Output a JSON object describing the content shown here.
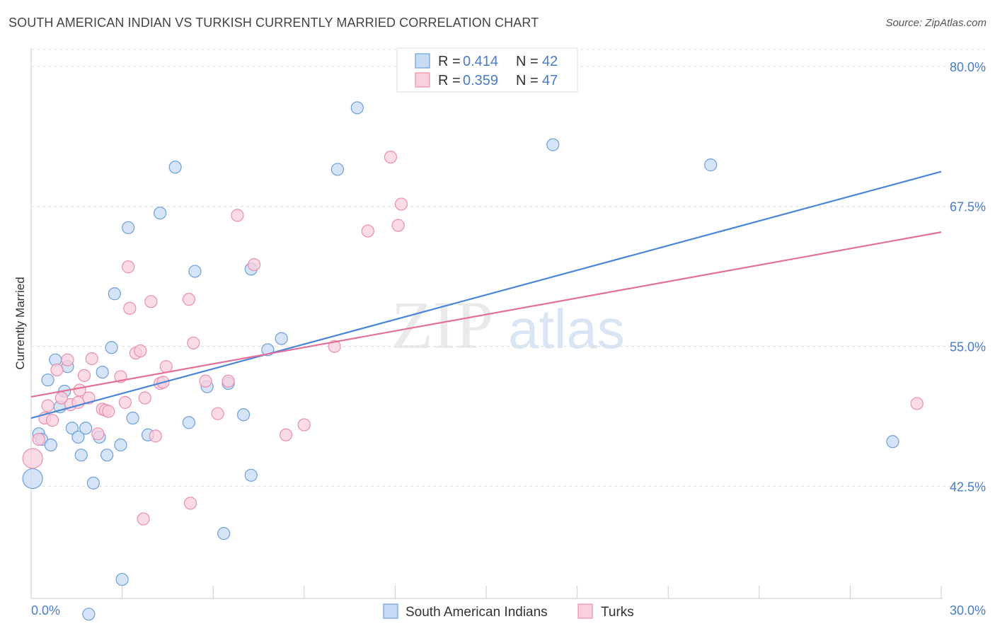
{
  "title": "SOUTH AMERICAN INDIAN VS TURKISH CURRENTLY MARRIED CORRELATION CHART",
  "source": "Source: ZipAtlas.com",
  "watermark": {
    "zip": "ZIP",
    "atlas": "atlas"
  },
  "legend": {
    "r_label": "R =",
    "n_label": "N =",
    "rows": [
      {
        "r": "0.414",
        "n": "42",
        "color": "#6fa0de"
      },
      {
        "r": "0.359",
        "n": "47",
        "color": "#ef8fae"
      }
    ]
  },
  "colors": {
    "blue": "#4a86d8",
    "blue_fill": "#c8dbf4",
    "pink": "#e46f98",
    "pink_fill": "#f9cfdc",
    "accent": "#4a7cc7"
  },
  "chart_data": {
    "type": "scatter",
    "title": "SOUTH AMERICAN INDIAN VS TURKISH CURRENTLY MARRIED CORRELATION CHART",
    "xlabel": "",
    "ylabel": "Currently Married",
    "xlim": [
      0,
      30
    ],
    "ylim": [
      32.5,
      81.5
    ],
    "x_tick_labels": [
      "0.0%",
      "30.0%"
    ],
    "y_ticks": [
      80.0,
      67.5,
      55.0,
      42.5
    ],
    "y_tick_labels": [
      "80.0%",
      "67.5%",
      "55.0%",
      "42.5%"
    ],
    "grid": true,
    "series": [
      {
        "name": "South American Indians",
        "r": 0.414,
        "n": 42,
        "trend": {
          "x": [
            0,
            30
          ],
          "y": [
            48.6,
            70.6
          ]
        },
        "points": [
          {
            "x": 0.05,
            "y": 43.2,
            "big": true
          },
          {
            "x": 0.25,
            "y": 47.2
          },
          {
            "x": 0.35,
            "y": 46.7
          },
          {
            "x": 0.55,
            "y": 52.0
          },
          {
            "x": 0.65,
            "y": 46.2
          },
          {
            "x": 0.8,
            "y": 53.8
          },
          {
            "x": 0.95,
            "y": 49.6
          },
          {
            "x": 1.1,
            "y": 51.0
          },
          {
            "x": 1.2,
            "y": 53.2
          },
          {
            "x": 1.35,
            "y": 47.7
          },
          {
            "x": 1.55,
            "y": 46.9
          },
          {
            "x": 1.65,
            "y": 45.3
          },
          {
            "x": 1.8,
            "y": 47.7
          },
          {
            "x": 1.9,
            "y": 31.1
          },
          {
            "x": 2.05,
            "y": 42.8
          },
          {
            "x": 2.25,
            "y": 46.9
          },
          {
            "x": 2.35,
            "y": 52.7
          },
          {
            "x": 2.5,
            "y": 45.3
          },
          {
            "x": 2.65,
            "y": 54.9
          },
          {
            "x": 2.75,
            "y": 59.7
          },
          {
            "x": 2.95,
            "y": 46.2
          },
          {
            "x": 3.0,
            "y": 34.2
          },
          {
            "x": 3.2,
            "y": 65.6
          },
          {
            "x": 3.35,
            "y": 48.6
          },
          {
            "x": 3.85,
            "y": 47.1
          },
          {
            "x": 4.25,
            "y": 66.9
          },
          {
            "x": 4.75,
            "y": 71.0
          },
          {
            "x": 5.2,
            "y": 48.2
          },
          {
            "x": 5.4,
            "y": 61.7
          },
          {
            "x": 5.8,
            "y": 51.4
          },
          {
            "x": 6.35,
            "y": 38.3
          },
          {
            "x": 6.5,
            "y": 51.7
          },
          {
            "x": 7.0,
            "y": 48.9
          },
          {
            "x": 7.25,
            "y": 43.5
          },
          {
            "x": 7.25,
            "y": 61.9
          },
          {
            "x": 7.8,
            "y": 54.7
          },
          {
            "x": 8.25,
            "y": 55.7
          },
          {
            "x": 10.1,
            "y": 70.8
          },
          {
            "x": 10.75,
            "y": 76.3
          },
          {
            "x": 17.2,
            "y": 73.0
          },
          {
            "x": 22.4,
            "y": 71.2
          },
          {
            "x": 28.4,
            "y": 46.5
          }
        ]
      },
      {
        "name": "Turks",
        "r": 0.359,
        "n": 47,
        "trend": {
          "x": [
            0,
            30
          ],
          "y": [
            50.5,
            65.2
          ]
        },
        "points": [
          {
            "x": 0.05,
            "y": 45.0,
            "big": true
          },
          {
            "x": 0.25,
            "y": 46.7
          },
          {
            "x": 0.45,
            "y": 48.6
          },
          {
            "x": 0.55,
            "y": 49.7
          },
          {
            "x": 0.7,
            "y": 48.4
          },
          {
            "x": 0.85,
            "y": 52.9
          },
          {
            "x": 1.0,
            "y": 50.4
          },
          {
            "x": 1.2,
            "y": 53.8
          },
          {
            "x": 1.3,
            "y": 49.8
          },
          {
            "x": 1.55,
            "y": 50.0
          },
          {
            "x": 1.6,
            "y": 51.1
          },
          {
            "x": 1.75,
            "y": 52.4
          },
          {
            "x": 1.9,
            "y": 50.4
          },
          {
            "x": 2.0,
            "y": 53.9
          },
          {
            "x": 2.2,
            "y": 47.2
          },
          {
            "x": 2.35,
            "y": 49.4
          },
          {
            "x": 2.45,
            "y": 49.3
          },
          {
            "x": 2.55,
            "y": 49.2
          },
          {
            "x": 2.95,
            "y": 52.3
          },
          {
            "x": 3.1,
            "y": 50.0
          },
          {
            "x": 3.2,
            "y": 62.1
          },
          {
            "x": 3.25,
            "y": 58.4
          },
          {
            "x": 3.45,
            "y": 54.4
          },
          {
            "x": 3.6,
            "y": 54.6
          },
          {
            "x": 3.7,
            "y": 39.6
          },
          {
            "x": 3.75,
            "y": 50.4
          },
          {
            "x": 3.95,
            "y": 59.0
          },
          {
            "x": 4.1,
            "y": 47.0
          },
          {
            "x": 4.25,
            "y": 51.7
          },
          {
            "x": 4.35,
            "y": 51.8
          },
          {
            "x": 4.45,
            "y": 53.2
          },
          {
            "x": 5.2,
            "y": 59.2
          },
          {
            "x": 5.25,
            "y": 41.0
          },
          {
            "x": 5.35,
            "y": 55.3
          },
          {
            "x": 5.75,
            "y": 51.9
          },
          {
            "x": 6.15,
            "y": 49.0
          },
          {
            "x": 6.5,
            "y": 51.9
          },
          {
            "x": 6.8,
            "y": 66.7
          },
          {
            "x": 7.35,
            "y": 62.3
          },
          {
            "x": 8.4,
            "y": 47.1
          },
          {
            "x": 9.0,
            "y": 48.0
          },
          {
            "x": 10.0,
            "y": 55.0
          },
          {
            "x": 11.1,
            "y": 65.3
          },
          {
            "x": 11.85,
            "y": 71.9
          },
          {
            "x": 12.1,
            "y": 65.8
          },
          {
            "x": 12.2,
            "y": 67.7
          },
          {
            "x": 29.2,
            "y": 49.9
          }
        ]
      }
    ]
  }
}
